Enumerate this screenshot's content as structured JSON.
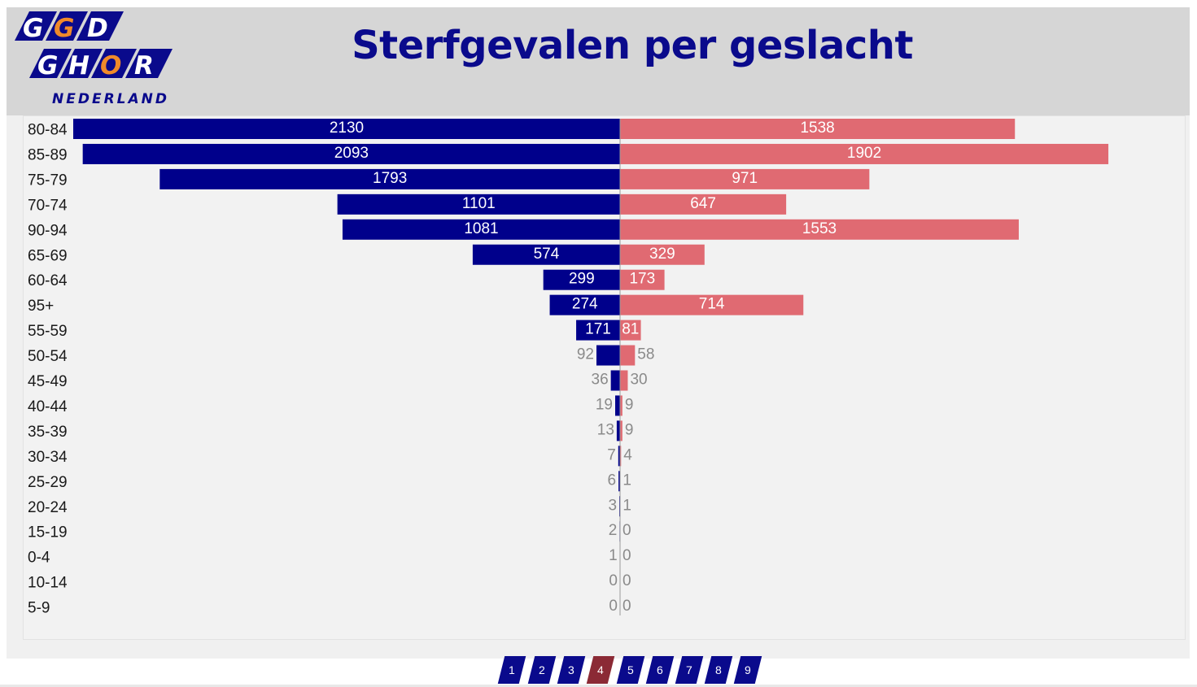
{
  "header": {
    "title": "Sterfgevalen per geslacht",
    "logo_text": [
      "GGD",
      "GHOR",
      "NEDERLAND"
    ]
  },
  "colors": {
    "male": "#00008b",
    "female": "#e06a72",
    "title": "#0a0a8c",
    "active_page": "#8b2a35"
  },
  "chart_data": {
    "type": "bar",
    "orientation": "horizontal-diverging",
    "categories": [
      "80-84",
      "85-89",
      "75-79",
      "70-74",
      "90-94",
      "65-69",
      "60-64",
      "95+",
      "55-59",
      "50-54",
      "45-49",
      "40-44",
      "35-39",
      "30-34",
      "25-29",
      "20-24",
      "15-19",
      "0-4",
      "10-14",
      "5-9"
    ],
    "series": [
      {
        "values": [
          2130,
          2093,
          1793,
          1101,
          1081,
          574,
          299,
          274,
          171,
          92,
          36,
          19,
          13,
          7,
          6,
          3,
          2,
          1,
          0,
          0
        ]
      },
      {
        "values": [
          1538,
          1902,
          971,
          647,
          1553,
          329,
          173,
          714,
          81,
          58,
          30,
          9,
          9,
          4,
          1,
          1,
          0,
          0,
          0,
          0
        ]
      }
    ],
    "title": "Sterfgevalen per geslacht",
    "xlabel": "",
    "ylabel": "",
    "grid": false,
    "legend": "none"
  },
  "pagination": {
    "pages": [
      "1",
      "2",
      "3",
      "4",
      "5",
      "6",
      "7",
      "8",
      "9"
    ],
    "active": "4"
  }
}
